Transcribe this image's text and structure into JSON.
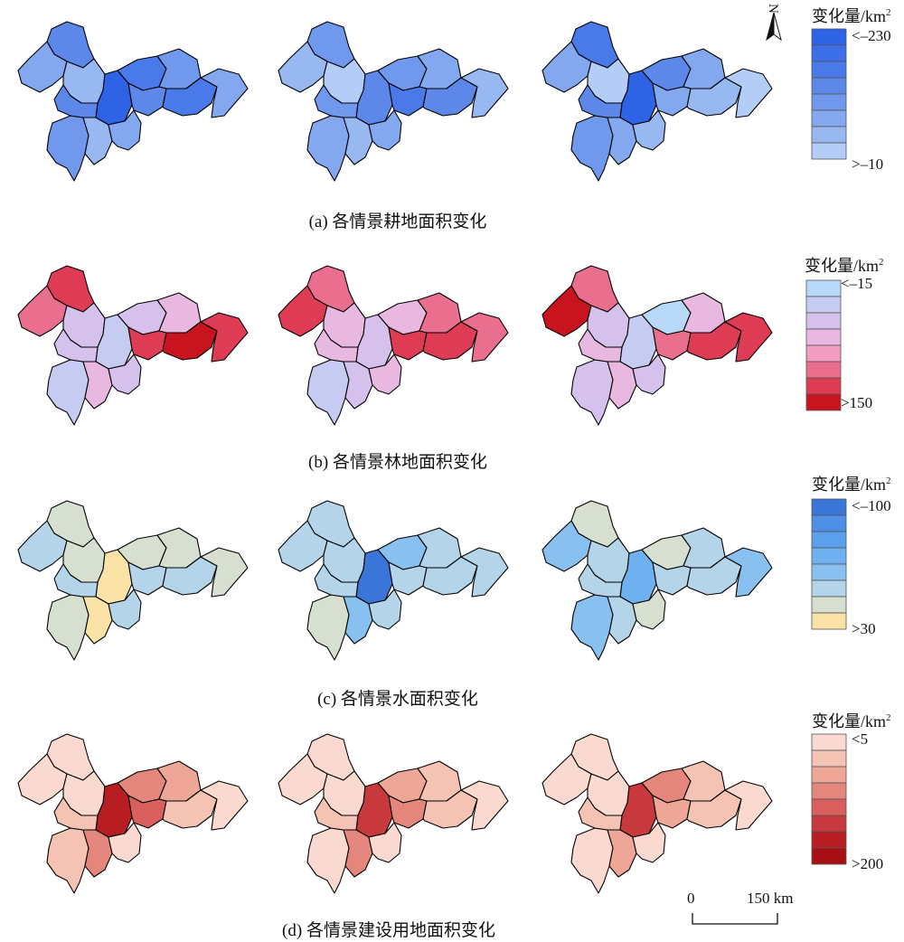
{
  "figure": {
    "rows": [
      {
        "id": "cropland",
        "caption": "(a) 各情景耕地面积变化",
        "legend": {
          "title_prefix": "变化量/km",
          "title_sup": "2",
          "top_label": "<–230",
          "bottom_label": ">–10",
          "colors": [
            "#2f63e6",
            "#3c6fe8",
            "#4a7ae9",
            "#5d88ea",
            "#7098ec",
            "#84a8ef",
            "#98b8f2",
            "#b3cdf7"
          ]
        },
        "panels": [
          {
            "fills": [
              "#5d88ea",
              "#84a8ef",
              "#98b8f2",
              "#2f63e6",
              "#4a7ae9",
              "#7098ec",
              "#5d88ea",
              "#4a7ae9",
              "#84a8ef",
              "#7098ec",
              "#98b8f2",
              "#84a8ef",
              "#5d88ea"
            ]
          },
          {
            "fills": [
              "#7098ec",
              "#98b8f2",
              "#b3cdf7",
              "#5d88ea",
              "#7098ec",
              "#84a8ef",
              "#4a7ae9",
              "#5d88ea",
              "#98b8f2",
              "#84a8ef",
              "#98b8f2",
              "#84a8ef",
              "#7098ec"
            ]
          },
          {
            "fills": [
              "#4a7ae9",
              "#84a8ef",
              "#b3cdf7",
              "#2f63e6",
              "#5d88ea",
              "#84a8ef",
              "#84a8ef",
              "#98b8f2",
              "#b3cdf7",
              "#7098ec",
              "#84a8ef",
              "#98b8f2",
              "#5d88ea"
            ]
          }
        ]
      },
      {
        "id": "forest",
        "caption": "(b) 各情景林地面积变化",
        "legend": {
          "title_prefix": "变化量/km",
          "title_sup": "2",
          "top_label": "<–15",
          "bottom_label": ">150",
          "colors": [
            "#b8d8f8",
            "#c6cbf2",
            "#d6c0ec",
            "#e8b8e0",
            "#f19cc0",
            "#ea6f8f",
            "#de3c55",
            "#c8141e"
          ]
        },
        "panels": [
          {
            "fills": [
              "#de3c55",
              "#ea6f8f",
              "#d6c0ec",
              "#c6cbf2",
              "#d6c0ec",
              "#e8b8e0",
              "#de3c55",
              "#c8141e",
              "#de3c55",
              "#c6cbf2",
              "#e8b8e0",
              "#d6c0ec",
              "#d6c0ec"
            ]
          },
          {
            "fills": [
              "#ea6f8f",
              "#de3c55",
              "#e8b8e0",
              "#d6c0ec",
              "#e8b8e0",
              "#ea6f8f",
              "#de3c55",
              "#de3c55",
              "#ea6f8f",
              "#c6cbf2",
              "#d6c0ec",
              "#e8b8e0",
              "#e8b8e0"
            ]
          },
          {
            "fills": [
              "#ea6f8f",
              "#c8141e",
              "#d6c0ec",
              "#c6cbf2",
              "#b8d8f8",
              "#e8b8e0",
              "#ea6f8f",
              "#de3c55",
              "#de3c55",
              "#d6c0ec",
              "#e8b8e0",
              "#d6c0ec",
              "#e8b8e0"
            ]
          }
        ]
      },
      {
        "id": "water",
        "caption": "(c) 各情景水面积变化",
        "legend": {
          "title_prefix": "变化量/km",
          "title_sup": "2",
          "top_label": "<–100",
          "bottom_label": ">30",
          "colors": [
            "#3a76d8",
            "#4d8fe6",
            "#5aa0ec",
            "#6fb0f0",
            "#88c0f0",
            "#b4d4ea",
            "#d6dfd0",
            "#fbe3a8"
          ]
        },
        "panels": [
          {
            "fills": [
              "#d6dfd0",
              "#b4d4ea",
              "#d6dfd0",
              "#fbe3a8",
              "#d6dfd0",
              "#d6dfd0",
              "#b4d4ea",
              "#b4d4ea",
              "#d6dfd0",
              "#d6dfd0",
              "#fbe3a8",
              "#b4d4ea",
              "#b4d4ea"
            ]
          },
          {
            "fills": [
              "#b4d4ea",
              "#b4d4ea",
              "#b4d4ea",
              "#3a76d8",
              "#88c0f0",
              "#b4d4ea",
              "#b4d4ea",
              "#b4d4ea",
              "#b4d4ea",
              "#d6dfd0",
              "#88c0f0",
              "#b4d4ea",
              "#b4d4ea"
            ]
          },
          {
            "fills": [
              "#d6dfd0",
              "#88c0f0",
              "#b4d4ea",
              "#6fb0f0",
              "#d6dfd0",
              "#b4d4ea",
              "#b4d4ea",
              "#b4d4ea",
              "#88c0f0",
              "#88c0f0",
              "#b4d4ea",
              "#d6dfd0",
              "#b4d4ea"
            ]
          }
        ]
      },
      {
        "id": "built",
        "caption": "(d) 各情景建设用地面积变化",
        "legend": {
          "title_prefix": "变化量/km",
          "title_sup": "2",
          "top_label": "<5",
          "bottom_label": ">200",
          "colors": [
            "#fadad0",
            "#f5c3b4",
            "#eea797",
            "#e4867b",
            "#d85f5e",
            "#c8393d",
            "#b81d21",
            "#a70f12"
          ]
        },
        "panels": [
          {
            "fills": [
              "#fadad0",
              "#fadad0",
              "#fadad0",
              "#b81d21",
              "#e4867b",
              "#eea797",
              "#d85f5e",
              "#f5c3b4",
              "#fadad0",
              "#f5c3b4",
              "#e4867b",
              "#fadad0",
              "#f5c3b4"
            ]
          },
          {
            "fills": [
              "#fadad0",
              "#fadad0",
              "#fadad0",
              "#c8393d",
              "#eea797",
              "#f5c3b4",
              "#e4867b",
              "#f5c3b4",
              "#fadad0",
              "#fadad0",
              "#e4867b",
              "#fadad0",
              "#f5c3b4"
            ]
          },
          {
            "fills": [
              "#fadad0",
              "#fadad0",
              "#fadad0",
              "#c8393d",
              "#e4867b",
              "#f5c3b4",
              "#eea797",
              "#f5c3b4",
              "#fadad0",
              "#fadad0",
              "#eea797",
              "#fadad0",
              "#f5c3b4"
            ]
          }
        ]
      }
    ],
    "north_arrow": {
      "label": "N"
    },
    "scale_bar": {
      "start_label": "0",
      "end_label": "150 km"
    }
  }
}
